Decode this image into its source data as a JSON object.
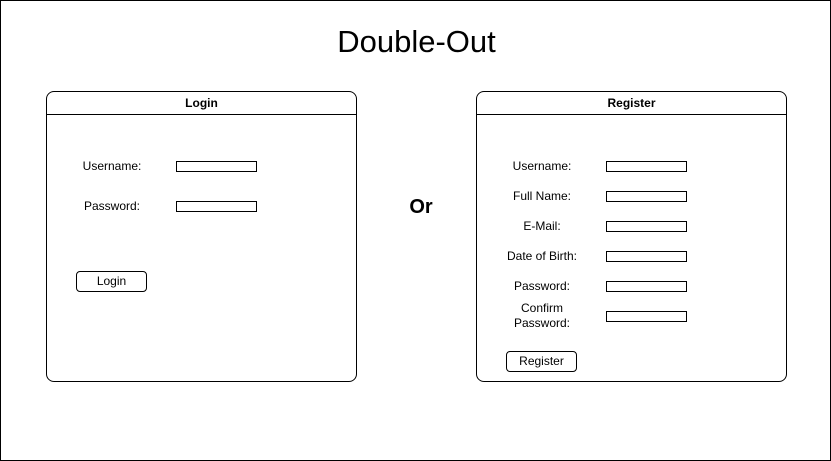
{
  "app": {
    "title": "Double-Out"
  },
  "divider": {
    "text": "Or"
  },
  "login": {
    "header": "Login",
    "fields": [
      {
        "label": "Username:",
        "value": ""
      },
      {
        "label": "Password:",
        "value": ""
      }
    ],
    "button_label": "Login"
  },
  "register": {
    "header": "Register",
    "fields": [
      {
        "label": "Username:",
        "value": ""
      },
      {
        "label": "Full Name:",
        "value": ""
      },
      {
        "label": "E-Mail:",
        "value": ""
      },
      {
        "label": "Date of Birth:",
        "value": ""
      },
      {
        "label": "Password:",
        "value": ""
      },
      {
        "label": "Confirm Password:",
        "value": ""
      }
    ],
    "button_label": "Register"
  }
}
